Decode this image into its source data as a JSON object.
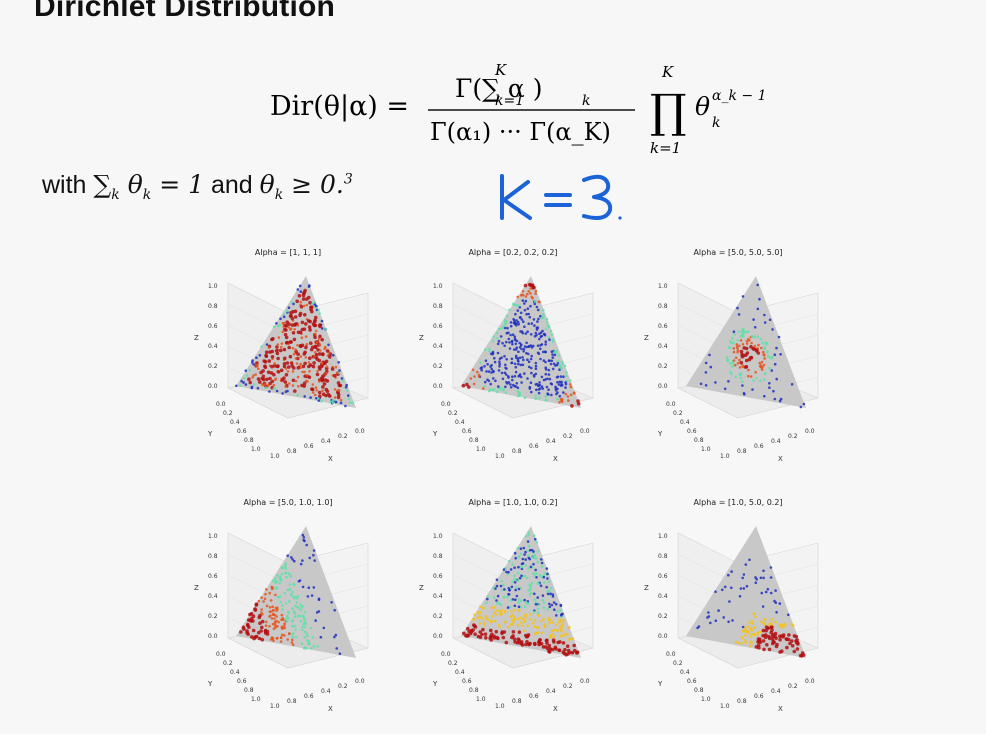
{
  "slide": {
    "title": "Dirichlet Distribution",
    "condition_text": "with",
    "condition_and": "and",
    "annotation": "k = 3."
  },
  "formula": {
    "lhs": "Dir(θ|α) =",
    "numerator": "Γ(∑ α )",
    "sum_top": "K",
    "sum_bottom": "k=1",
    "alpha_sub": "k",
    "denominator": "Γ(α₁) ··· Γ(α_K)",
    "prod_top": "K",
    "prod_bottom": "k=1",
    "term": "θ",
    "term_sub": "k",
    "term_sup": "α_k − 1"
  },
  "panels": [
    {
      "title": "Alpha = [1, 1, 1]",
      "pattern": "uniform"
    },
    {
      "title": "Alpha = [0.2, 0.2, 0.2]",
      "pattern": "corners"
    },
    {
      "title": "Alpha = [5.0, 5.0, 5.0]",
      "pattern": "center"
    },
    {
      "title": "Alpha = [5.0, 1.0, 1.0]",
      "pattern": "corner-left"
    },
    {
      "title": "Alpha = [1.0, 1.0, 0.2]",
      "pattern": "bottom-edge"
    },
    {
      "title": "Alpha = [1.0, 5.0, 0.2]",
      "pattern": "bottom-right"
    }
  ],
  "axis": {
    "z_label": "Z",
    "y_label": "Y",
    "x_label": "X",
    "z_ticks": [
      "1.0",
      "0.8",
      "0.6",
      "0.4",
      "0.2",
      "0.0"
    ],
    "y_ticks": [
      "0.0",
      "0.2",
      "0.4",
      "0.6",
      "0.8",
      "1.0"
    ],
    "x_ticks": [
      "1.0",
      "0.8",
      "0.6",
      "0.4",
      "0.2",
      "0.0"
    ]
  },
  "colors": {
    "dense": "#b40f12",
    "mid": "#f6c21a",
    "low": "#5fe0a8",
    "sparse": "#1f2fbf",
    "simplex": "#c8c8c8",
    "annotation": "#1b63d6"
  }
}
